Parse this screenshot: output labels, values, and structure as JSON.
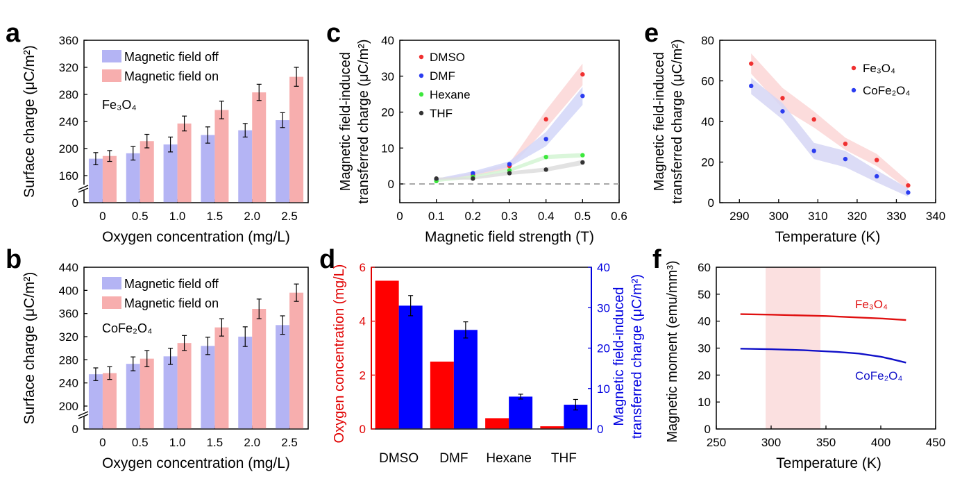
{
  "chart_data": [
    {
      "panel": "a",
      "type": "bar",
      "categories": [
        "0",
        "0.5",
        "1.0",
        "1.5",
        "2.0",
        "2.5"
      ],
      "series": [
        {
          "name": "Magnetic field off",
          "values": [
            185,
            193,
            206,
            220,
            227,
            242
          ],
          "errors": [
            9,
            10,
            11,
            12,
            10,
            11
          ],
          "color": "#b4b4f4"
        },
        {
          "name": "Magnetic field on",
          "values": [
            189,
            211,
            237,
            257,
            283,
            306
          ],
          "errors": [
            8,
            10,
            11,
            13,
            12,
            14
          ],
          "color": "#f7aeae"
        }
      ],
      "xlabel": "Oxygen concentration (mg/L)",
      "ylabel": "Surface charge (μC/m²)",
      "yticks": [
        "0",
        "160",
        "200",
        "240",
        "280",
        "320",
        "360"
      ],
      "annotation": "Fe₃O₄",
      "axis_break": true,
      "legend": "top-left"
    },
    {
      "panel": "b",
      "type": "bar",
      "categories": [
        "0",
        "0.5",
        "1.0",
        "1.5",
        "2.0",
        "2.5"
      ],
      "series": [
        {
          "name": "Magnetic field off",
          "values": [
            255,
            273,
            286,
            304,
            320,
            340
          ],
          "errors": [
            11,
            12,
            14,
            15,
            17,
            16
          ],
          "color": "#b4b4f4"
        },
        {
          "name": "Magnetic field on",
          "values": [
            257,
            282,
            309,
            336,
            368,
            396
          ],
          "errors": [
            11,
            14,
            13,
            15,
            17,
            15
          ],
          "color": "#f7aeae"
        }
      ],
      "xlabel": "Oxygen concentration (mg/L)",
      "ylabel": "Surface charge (μC/m²)",
      "yticks": [
        "0",
        "200",
        "240",
        "280",
        "320",
        "360",
        "400",
        "440"
      ],
      "annotation": "CoFe₂O₄",
      "axis_break": true,
      "legend": "top-left"
    },
    {
      "panel": "c",
      "type": "scatter",
      "x": [
        0.1,
        0.2,
        0.3,
        0.4,
        0.5
      ],
      "series": [
        {
          "name": "DMSO",
          "values": [
            1.2,
            2.5,
            5.0,
            18.0,
            30.5
          ],
          "band": [
            0.3,
            0.5,
            0.8,
            2.5,
            3.0
          ],
          "color": "#f03030",
          "band_color": "#fcd6d6"
        },
        {
          "name": "DMF",
          "values": [
            1.2,
            3.0,
            5.5,
            12.5,
            24.5
          ],
          "band": [
            0.3,
            0.5,
            0.8,
            2.0,
            2.5
          ],
          "color": "#2b3cf0",
          "band_color": "#d2d6f8"
        },
        {
          "name": "Hexane",
          "values": [
            0.8,
            2.0,
            3.8,
            7.5,
            8.0
          ],
          "band": [
            0.3,
            0.4,
            0.5,
            0.6,
            0.6
          ],
          "color": "#3ce83c",
          "band_color": "#d4f5d4"
        },
        {
          "name": "THF",
          "values": [
            1.5,
            1.5,
            3.0,
            4.0,
            6.0
          ],
          "band": [
            0.3,
            0.3,
            0.5,
            0.6,
            0.7
          ],
          "color": "#333333",
          "band_color": "#dddddd"
        }
      ],
      "xlabel": "Magnetic field strength (T)",
      "ylabel": "Magnetic field-induced transferred charge (μC/m²)",
      "xlim": [
        0,
        0.6
      ],
      "ylim": [
        -2,
        40
      ],
      "xticks": [
        "0",
        "0.1",
        "0.2",
        "0.3",
        "0.4",
        "0.5",
        "0.6"
      ],
      "yticks": [
        "0",
        "10",
        "20",
        "30",
        "40"
      ],
      "legend": "top-left"
    },
    {
      "panel": "d",
      "type": "bar",
      "categories": [
        "DMSO",
        "DMF",
        "Hexane",
        "THF"
      ],
      "series": [
        {
          "name": "Oxygen concentration (mg/L)",
          "values": [
            5.5,
            2.5,
            0.4,
            0.1
          ],
          "color": "#ff0000",
          "axis": "left"
        },
        {
          "name": "Magnetic field-induced transferred charge (μC/m²)",
          "values": [
            30.5,
            24.5,
            8.0,
            6.0
          ],
          "errors": [
            2.5,
            2.0,
            0.6,
            1.3
          ],
          "color": "#0000ff",
          "axis": "right"
        }
      ],
      "ylabel": "Oxygen concentration (mg/L)",
      "y2label": "Magnetic field-induced transferred charge (μC/m²)",
      "ylim": [
        0,
        6
      ],
      "y2lim": [
        0,
        40
      ],
      "yticks": [
        "0",
        "2",
        "4",
        "6"
      ],
      "y2ticks": [
        "0",
        "10",
        "20",
        "30",
        "40"
      ]
    },
    {
      "panel": "e",
      "type": "scatter",
      "x": [
        293,
        301,
        309,
        317,
        325,
        333
      ],
      "series": [
        {
          "name": "Fe₃O₄",
          "values": [
            68.5,
            51.5,
            41.0,
            29.0,
            21.0,
            8.5
          ],
          "color": "#f03030",
          "band_color": "#fcd6d6"
        },
        {
          "name": "CoFe₂O₄",
          "values": [
            57.5,
            45.0,
            25.5,
            21.5,
            13.0,
            5.0
          ],
          "color": "#2b3cf0",
          "band_color": "#d6d6f4"
        }
      ],
      "xlabel": "Temperature (K)",
      "ylabel": "Magnetic field-induced transferred charge (μC/m²)",
      "xlim": [
        285,
        340
      ],
      "ylim": [
        0,
        80
      ],
      "xticks": [
        "290",
        "300",
        "310",
        "320",
        "330",
        "340"
      ],
      "yticks": [
        "0",
        "20",
        "40",
        "60",
        "80"
      ],
      "legend": "top-right"
    },
    {
      "panel": "f",
      "type": "line",
      "series": [
        {
          "name": "Fe₃O₄",
          "x": [
            272,
            300,
            350,
            400,
            423
          ],
          "values": [
            42.6,
            42.4,
            41.9,
            41.0,
            40.4
          ],
          "color": "#e01010"
        },
        {
          "name": "CoFe₂O₄",
          "x": [
            272,
            300,
            330,
            360,
            380,
            400,
            410,
            423
          ],
          "values": [
            29.8,
            29.6,
            29.2,
            28.6,
            28.0,
            26.8,
            25.9,
            24.6
          ],
          "color": "#1010c8"
        }
      ],
      "shaded_range": [
        295,
        345
      ],
      "xlabel": "Temperature (K)",
      "ylabel": "Magnetic moment (emu/mm³)",
      "xlim": [
        250,
        450
      ],
      "ylim": [
        0,
        60
      ],
      "xticks": [
        "250",
        "300",
        "350",
        "400",
        "450"
      ],
      "yticks": [
        "0",
        "10",
        "20",
        "30",
        "40",
        "50",
        "60"
      ]
    }
  ],
  "panel_labels": [
    "a",
    "b",
    "c",
    "d",
    "e",
    "f"
  ]
}
